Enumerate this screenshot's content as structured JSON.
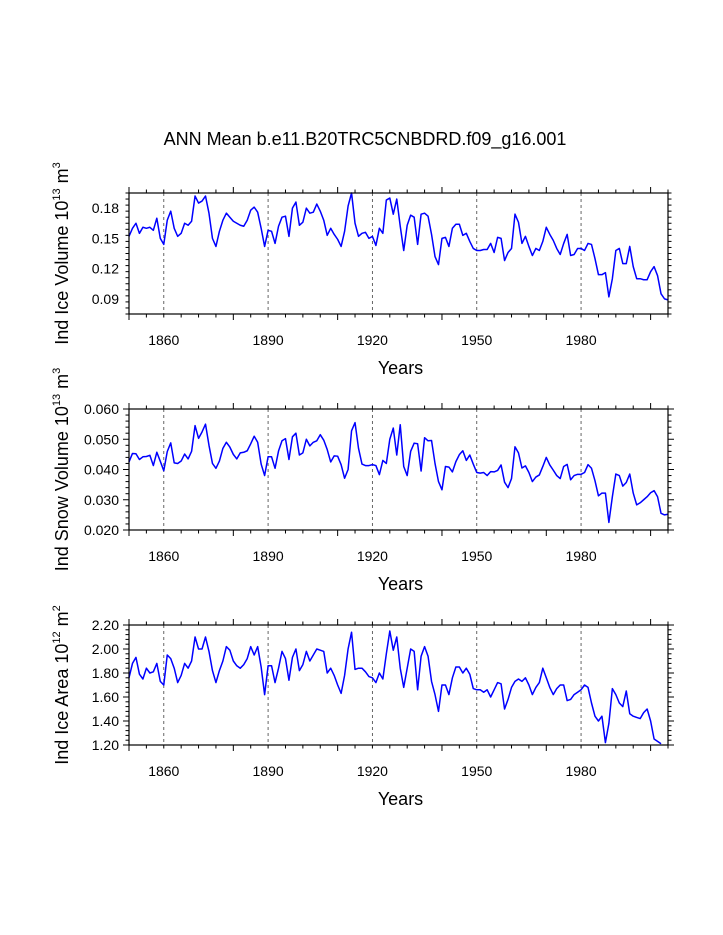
{
  "title": "ANN Mean b.e11.B20TRC5CNBDRD.f09_g16.001",
  "colors": {
    "line": "#0000ff",
    "axis": "#000000",
    "grid": "#555555"
  },
  "chart_data": [
    {
      "type": "line",
      "ylabel_main": "Ind Ice Volume 10",
      "ylabel_exp": "13",
      "ylabel_unit": " m",
      "ylabel_unit_exp": "3",
      "xlabel": "Years",
      "xlim": [
        1850,
        2005
      ],
      "ylim": [
        0.075,
        0.195
      ],
      "xticks": [
        1860,
        1890,
        1920,
        1950,
        1980
      ],
      "xtick_labels": [
        "1860",
        "1890",
        "1920",
        "1950",
        "1980"
      ],
      "yticks": [
        0.09,
        0.12,
        0.15,
        0.18
      ],
      "ytick_labels": [
        "0.09",
        "0.12",
        "0.15",
        "0.18"
      ],
      "grid_x": [
        1860,
        1890,
        1920,
        1950,
        1980
      ],
      "x_start": 1850,
      "values": [
        0.152,
        0.16,
        0.165,
        0.155,
        0.161,
        0.16,
        0.161,
        0.158,
        0.17,
        0.15,
        0.144,
        0.168,
        0.177,
        0.16,
        0.152,
        0.155,
        0.165,
        0.163,
        0.167,
        0.192,
        0.185,
        0.187,
        0.192,
        0.175,
        0.15,
        0.142,
        0.157,
        0.168,
        0.175,
        0.171,
        0.167,
        0.165,
        0.163,
        0.162,
        0.168,
        0.178,
        0.181,
        0.176,
        0.16,
        0.142,
        0.158,
        0.157,
        0.145,
        0.162,
        0.171,
        0.172,
        0.152,
        0.18,
        0.186,
        0.163,
        0.166,
        0.18,
        0.175,
        0.176,
        0.184,
        0.177,
        0.168,
        0.153,
        0.16,
        0.154,
        0.149,
        0.142,
        0.157,
        0.182,
        0.195,
        0.165,
        0.152,
        0.155,
        0.156,
        0.15,
        0.152,
        0.143,
        0.16,
        0.155,
        0.188,
        0.19,
        0.174,
        0.189,
        0.162,
        0.138,
        0.163,
        0.173,
        0.171,
        0.144,
        0.174,
        0.175,
        0.172,
        0.154,
        0.132,
        0.124,
        0.15,
        0.151,
        0.142,
        0.16,
        0.164,
        0.164,
        0.153,
        0.155,
        0.147,
        0.14,
        0.138,
        0.138,
        0.139,
        0.139,
        0.145,
        0.136,
        0.151,
        0.15,
        0.128,
        0.136,
        0.14,
        0.174,
        0.166,
        0.145,
        0.152,
        0.142,
        0.133,
        0.14,
        0.138,
        0.147,
        0.161,
        0.154,
        0.148,
        0.14,
        0.134,
        0.145,
        0.154,
        0.133,
        0.134,
        0.14,
        0.14,
        0.138,
        0.145,
        0.144,
        0.13,
        0.114,
        0.114,
        0.116,
        0.092,
        0.11,
        0.138,
        0.14,
        0.125,
        0.125,
        0.142,
        0.122,
        0.11,
        0.11,
        0.109,
        0.109,
        0.117,
        0.122,
        0.113,
        0.095,
        0.09,
        0.089
      ]
    },
    {
      "type": "line",
      "ylabel_main": "Ind Snow Volume 10",
      "ylabel_exp": "13",
      "ylabel_unit": " m",
      "ylabel_unit_exp": "3",
      "xlabel": "Years",
      "xlim": [
        1850,
        2005
      ],
      "ylim": [
        0.02,
        0.06
      ],
      "xticks": [
        1860,
        1890,
        1920,
        1950,
        1980
      ],
      "xtick_labels": [
        "1860",
        "1890",
        "1920",
        "1950",
        "1980"
      ],
      "yticks": [
        0.02,
        0.03,
        0.04,
        0.05,
        0.06
      ],
      "ytick_labels": [
        "0.020",
        "0.030",
        "0.040",
        "0.050",
        "0.060"
      ],
      "grid_x": [
        1860,
        1890,
        1920,
        1950,
        1980
      ],
      "x_start": 1850,
      "values": [
        0.0425,
        0.0453,
        0.0452,
        0.0433,
        0.0442,
        0.0443,
        0.0447,
        0.0413,
        0.0457,
        0.0427,
        0.0396,
        0.0459,
        0.0488,
        0.0422,
        0.042,
        0.0428,
        0.0451,
        0.0435,
        0.046,
        0.0545,
        0.0503,
        0.0524,
        0.055,
        0.048,
        0.042,
        0.0404,
        0.0428,
        0.047,
        0.049,
        0.0474,
        0.045,
        0.0435,
        0.0455,
        0.0457,
        0.0462,
        0.0485,
        0.051,
        0.049,
        0.0418,
        0.038,
        0.0442,
        0.0442,
        0.0404,
        0.0461,
        0.0495,
        0.0502,
        0.0433,
        0.0508,
        0.052,
        0.0448,
        0.0455,
        0.05,
        0.0478,
        0.049,
        0.0495,
        0.0515,
        0.0497,
        0.0466,
        0.0425,
        0.0445,
        0.0444,
        0.0416,
        0.0371,
        0.04,
        0.0528,
        0.0555,
        0.047,
        0.0418,
        0.0413,
        0.0413,
        0.0416,
        0.0413,
        0.0383,
        0.043,
        0.042,
        0.05,
        0.0537,
        0.0448,
        0.0548,
        0.041,
        0.038,
        0.046,
        0.0487,
        0.0485,
        0.0395,
        0.0505,
        0.0495,
        0.0496,
        0.042,
        0.036,
        0.0333,
        0.041,
        0.0408,
        0.0392,
        0.0426,
        0.0449,
        0.0462,
        0.043,
        0.0448,
        0.0418,
        0.039,
        0.0388,
        0.039,
        0.038,
        0.0393,
        0.0392,
        0.0397,
        0.0415,
        0.0358,
        0.034,
        0.037,
        0.0475,
        0.0455,
        0.0405,
        0.0412,
        0.039,
        0.036,
        0.0375,
        0.0382,
        0.041,
        0.044,
        0.0415,
        0.0398,
        0.038,
        0.037,
        0.041,
        0.0417,
        0.0366,
        0.038,
        0.0384,
        0.0384,
        0.039,
        0.0416,
        0.0404,
        0.0363,
        0.0313,
        0.0322,
        0.0322,
        0.0225,
        0.031,
        0.0385,
        0.038,
        0.0345,
        0.0357,
        0.0385,
        0.0322,
        0.0283,
        0.029,
        0.03,
        0.031,
        0.0323,
        0.033,
        0.031,
        0.0255,
        0.025,
        0.0252
      ]
    },
    {
      "type": "line",
      "ylabel_main": "Ind Ice Area 10",
      "ylabel_exp": "12",
      "ylabel_unit": " m",
      "ylabel_unit_exp": "2",
      "xlabel": "Years",
      "xlim": [
        1850,
        2005
      ],
      "ylim": [
        1.2,
        2.2
      ],
      "xticks": [
        1860,
        1890,
        1920,
        1950,
        1980
      ],
      "xtick_labels": [
        "1860",
        "1890",
        "1920",
        "1950",
        "1980"
      ],
      "yticks": [
        1.2,
        1.4,
        1.6,
        1.8,
        2.0,
        2.2
      ],
      "ytick_labels": [
        "1.20",
        "1.40",
        "1.60",
        "1.80",
        "2.00",
        "2.20"
      ],
      "grid_x": [
        1860,
        1890,
        1920,
        1950,
        1980
      ],
      "x_start": 1850,
      "values": [
        1.76,
        1.88,
        1.93,
        1.79,
        1.75,
        1.84,
        1.8,
        1.81,
        1.88,
        1.73,
        1.7,
        1.95,
        1.92,
        1.84,
        1.72,
        1.78,
        1.88,
        1.84,
        1.9,
        2.1,
        2.0,
        2.0,
        2.1,
        1.98,
        1.82,
        1.72,
        1.82,
        1.9,
        2.02,
        1.99,
        1.9,
        1.86,
        1.84,
        1.87,
        1.92,
        2.02,
        1.95,
        2.02,
        1.85,
        1.62,
        1.86,
        1.86,
        1.72,
        1.84,
        1.98,
        1.92,
        1.74,
        1.93,
        2.0,
        1.82,
        1.87,
        1.98,
        1.9,
        1.95,
        2.0,
        1.99,
        1.98,
        1.8,
        1.84,
        1.78,
        1.7,
        1.63,
        1.78,
        2.0,
        2.14,
        1.83,
        1.84,
        1.84,
        1.81,
        1.77,
        1.76,
        1.72,
        1.8,
        1.75,
        1.96,
        2.15,
        1.99,
        2.1,
        1.84,
        1.68,
        1.84,
        2.0,
        1.98,
        1.66,
        1.94,
        2.02,
        1.94,
        1.73,
        1.62,
        1.48,
        1.7,
        1.7,
        1.62,
        1.76,
        1.85,
        1.85,
        1.8,
        1.84,
        1.79,
        1.67,
        1.66,
        1.66,
        1.64,
        1.66,
        1.6,
        1.66,
        1.72,
        1.71,
        1.5,
        1.58,
        1.68,
        1.73,
        1.75,
        1.73,
        1.76,
        1.7,
        1.62,
        1.68,
        1.72,
        1.84,
        1.76,
        1.68,
        1.62,
        1.67,
        1.7,
        1.7,
        1.57,
        1.58,
        1.62,
        1.64,
        1.66,
        1.7,
        1.68,
        1.55,
        1.44,
        1.4,
        1.44,
        1.22,
        1.38,
        1.67,
        1.62,
        1.55,
        1.52,
        1.65,
        1.46,
        1.44,
        1.43,
        1.42,
        1.47,
        1.5,
        1.4,
        1.25,
        1.23,
        1.21
      ]
    }
  ]
}
